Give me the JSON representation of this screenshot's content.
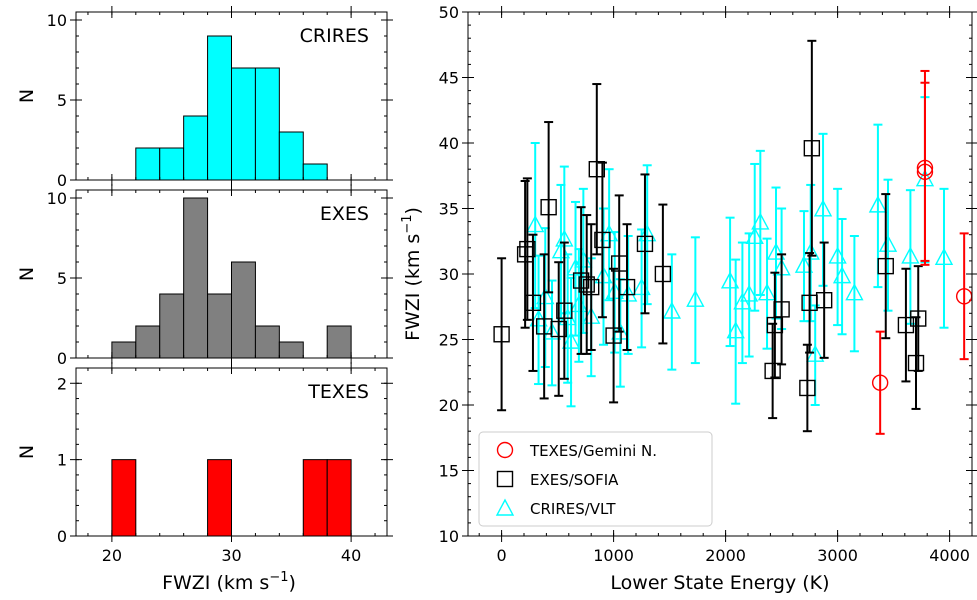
{
  "chart_data": [
    {
      "panel": "hist-crires",
      "type": "bar",
      "label": "CRIRES",
      "color": "#00ffff",
      "ylabel": "N",
      "ylim": [
        0,
        10.5
      ],
      "yticks": [
        0,
        5,
        10
      ],
      "xlim": [
        17,
        43
      ],
      "bin_width": 2,
      "bin_starts": [
        22,
        24,
        26,
        28,
        30,
        32,
        34,
        36
      ],
      "values": [
        2,
        2,
        4,
        9,
        7,
        7,
        3,
        1
      ]
    },
    {
      "panel": "hist-exes",
      "type": "bar",
      "label": "EXES",
      "color": "#808080",
      "ylabel": "N",
      "ylim": [
        0,
        10.5
      ],
      "yticks": [
        0,
        5,
        10
      ],
      "xlim": [
        17,
        43
      ],
      "bin_width": 2,
      "bin_starts": [
        20,
        22,
        24,
        26,
        28,
        30,
        32,
        34,
        36,
        38
      ],
      "values": [
        1,
        2,
        4,
        10,
        4,
        6,
        2,
        1,
        0,
        2
      ]
    },
    {
      "panel": "hist-texes",
      "type": "bar",
      "label": "TEXES",
      "color": "#ff0000",
      "ylabel": "N",
      "ylim": [
        0,
        2.2
      ],
      "yticks": [
        0,
        1,
        2
      ],
      "xlim": [
        17,
        43
      ],
      "xticks": [
        20,
        30,
        40
      ],
      "xlabel": "FWZI (km s",
      "xlabel_sup": "−1",
      "xlabel_end": ")",
      "bin_width": 2,
      "bin_starts": [
        20,
        28,
        36,
        38
      ],
      "values": [
        1,
        1,
        1,
        1
      ]
    },
    {
      "panel": "scatter",
      "type": "scatter",
      "xlabel": "Lower State Energy (K)",
      "ylabel": "FWZI (km s",
      "ylabel_sup": "−1",
      "ylabel_end": ")",
      "xlim": [
        -300,
        4200
      ],
      "ylim": [
        10,
        50
      ],
      "xticks": [
        0,
        1000,
        2000,
        3000,
        4000
      ],
      "yticks": [
        10,
        15,
        20,
        25,
        30,
        35,
        40,
        45,
        50
      ],
      "legend_position": "lower-left",
      "series": [
        {
          "name": "TEXES/Gemini N.",
          "marker": "circle",
          "color": "#ff0000",
          "points": [
            [
              3380,
              21.7,
              3.9
            ],
            [
              3780,
              38.1,
              7.4
            ],
            [
              3780,
              37.8,
              6.8
            ],
            [
              4130,
              28.3,
              4.8
            ]
          ]
        },
        {
          "name": "EXES/SOFIA",
          "marker": "square",
          "color": "#000000",
          "points": [
            [
              0,
              25.4,
              5.8
            ],
            [
              210,
              31.5,
              5.6
            ],
            [
              230,
              31.9,
              5.4
            ],
            [
              280,
              27.8,
              5.2
            ],
            [
              380,
              26.0,
              5.5
            ],
            [
              420,
              35.1,
              6.5
            ],
            [
              510,
              25.8,
              5.1
            ],
            [
              560,
              27.2,
              5.2
            ],
            [
              710,
              29.5,
              5.6
            ],
            [
              760,
              29.2,
              5.3
            ],
            [
              800,
              29.0,
              4.8
            ],
            [
              850,
              38.0,
              6.5
            ],
            [
              900,
              32.6,
              5.9
            ],
            [
              1000,
              25.3,
              5.1
            ],
            [
              1050,
              30.8,
              5.2
            ],
            [
              1120,
              29.0,
              4.8
            ],
            [
              1280,
              32.3,
              5.3
            ],
            [
              1440,
              30.0,
              5.3
            ],
            [
              2420,
              22.6,
              3.6
            ],
            [
              2440,
              26.1,
              4.0
            ],
            [
              2500,
              27.3,
              4.2
            ],
            [
              2730,
              21.3,
              3.3
            ],
            [
              2750,
              27.8,
              3.8
            ],
            [
              2770,
              39.6,
              8.2
            ],
            [
              2880,
              28.0,
              4.4
            ],
            [
              3430,
              30.6,
              5.5
            ],
            [
              3610,
              26.1,
              4.3
            ],
            [
              3700,
              23.2,
              3.5
            ],
            [
              3720,
              26.6,
              4.0
            ]
          ]
        },
        {
          "name": "CRIRES/VLT",
          "marker": "triangle",
          "color": "#00ffff",
          "points": [
            [
              300,
              33.7,
              6.3
            ],
            [
              330,
              26.5,
              4.9
            ],
            [
              390,
              28.2,
              5.3
            ],
            [
              450,
              25.5,
              4.0
            ],
            [
              530,
              31.7,
              5.1
            ],
            [
              560,
              32.6,
              5.6
            ],
            [
              590,
              26.6,
              4.9
            ],
            [
              620,
              24.8,
              4.9
            ],
            [
              660,
              30.4,
              5.1
            ],
            [
              690,
              27.6,
              4.3
            ],
            [
              730,
              31.0,
              5.5
            ],
            [
              800,
              26.7,
              4.5
            ],
            [
              910,
              29.8,
              5.2
            ],
            [
              960,
              33.0,
              5.0
            ],
            [
              1010,
              28.6,
              4.6
            ],
            [
              1060,
              25.5,
              4.1
            ],
            [
              1130,
              28.4,
              4.5
            ],
            [
              1250,
              28.9,
              4.5
            ],
            [
              1300,
              33.0,
              5.3
            ],
            [
              1520,
              27.1,
              4.4
            ],
            [
              1730,
              28.0,
              4.8
            ],
            [
              2040,
              29.4,
              4.9
            ],
            [
              2090,
              25.6,
              5.5
            ],
            [
              2150,
              27.8,
              4.6
            ],
            [
              2210,
              28.4,
              4.7
            ],
            [
              2260,
              32.8,
              5.6
            ],
            [
              2310,
              33.9,
              5.5
            ],
            [
              2370,
              28.5,
              4.2
            ],
            [
              2450,
              31.6,
              5.0
            ],
            [
              2500,
              30.4,
              4.6
            ],
            [
              2700,
              30.6,
              4.2
            ],
            [
              2760,
              31.6,
              5.2
            ],
            [
              2800,
              23.8,
              3.8
            ],
            [
              2870,
              34.9,
              5.8
            ],
            [
              3000,
              31.3,
              5.2
            ],
            [
              3040,
              29.8,
              4.4
            ],
            [
              3150,
              28.5,
              4.4
            ],
            [
              3360,
              35.2,
              6.2
            ],
            [
              3450,
              32.2,
              5.0
            ],
            [
              3650,
              31.3,
              5.1
            ],
            [
              3780,
              37.2,
              6.3
            ],
            [
              3950,
              31.2,
              5.3
            ]
          ]
        }
      ]
    }
  ]
}
